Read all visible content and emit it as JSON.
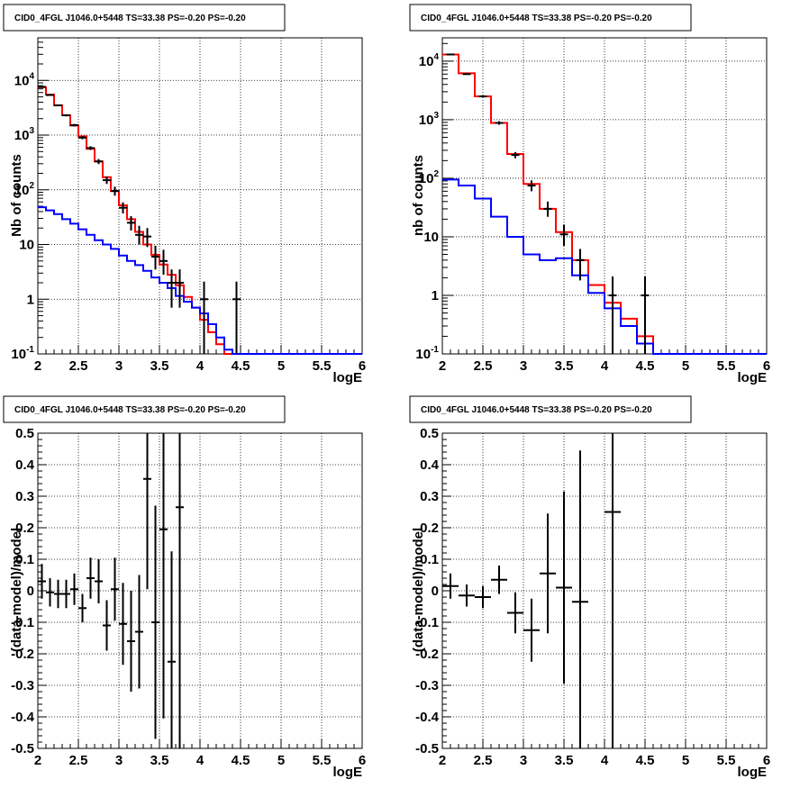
{
  "chart_data": [
    {
      "type": "histogram",
      "title": "CID0_4FGL J1046.0+5448 TS=33.38 PS=-0.20 PS=-0.20",
      "xlabel": "logE",
      "ylabel": "Nb of counts",
      "xlim": [
        2,
        6
      ],
      "ylim": [
        0.1,
        60000
      ],
      "yscale": "log",
      "x_ticks": [
        "2",
        "2.5",
        "3",
        "3.5",
        "4",
        "4.5",
        "5",
        "5.5",
        "6"
      ],
      "y_ticks": [
        {
          "base": "10",
          "exp": "-1"
        },
        {
          "base": "1",
          "exp": ""
        },
        {
          "base": "10",
          "exp": ""
        },
        {
          "base": "10",
          "exp": "2"
        },
        {
          "base": "10",
          "exp": "3"
        },
        {
          "base": "10",
          "exp": "4"
        }
      ],
      "grid": true,
      "bin_edges": [
        2.0,
        2.1,
        2.2,
        2.3,
        2.4,
        2.5,
        2.6,
        2.7,
        2.8,
        2.9,
        3.0,
        3.1,
        3.2,
        3.3,
        3.4,
        3.5,
        3.6,
        3.7,
        3.8,
        3.9,
        4.0,
        4.1,
        4.2,
        4.3,
        4.4,
        4.5,
        4.6,
        4.7,
        4.8,
        4.9,
        5.0,
        5.1,
        5.2,
        5.3,
        5.4,
        5.5,
        5.6,
        5.7,
        5.8,
        5.9,
        6.0
      ],
      "series": [
        {
          "color": "#ff0000",
          "values": [
            7500,
            5500,
            3500,
            2300,
            1500,
            950,
            560,
            330,
            170,
            95,
            52,
            29,
            17,
            10,
            6.5,
            4.3,
            2.8,
            1.8,
            1.1,
            0.7,
            0.42,
            0.25,
            0.15,
            0.1,
            0.1,
            0.1,
            0.1,
            0.1,
            0.1,
            0.1,
            0.1,
            0.1,
            0.1,
            0.1,
            0.1,
            0.1,
            0.1,
            0.1,
            0.1,
            0.1
          ]
        },
        {
          "color": "#0000ff",
          "values": [
            48,
            42,
            36,
            29,
            24,
            19,
            15,
            12,
            10,
            8.3,
            6.3,
            5,
            4.2,
            3.3,
            2.5,
            2,
            1.6,
            1.15,
            0.9,
            0.7,
            0.55,
            0.35,
            0.2,
            0.12,
            0.1,
            0.1,
            0.1,
            0.1,
            0.1,
            0.1,
            0.1,
            0.1,
            0.1,
            0.1,
            0.1,
            0.1,
            0.1,
            0.1,
            0.1,
            0.1
          ]
        }
      ],
      "points": [
        {
          "x": 2.05,
          "y": 7600,
          "lo": 7400,
          "hi": 7800
        },
        {
          "x": 2.15,
          "y": 5400,
          "lo": 5250,
          "hi": 5550
        },
        {
          "x": 2.25,
          "y": 3500,
          "lo": 3380,
          "hi": 3620
        },
        {
          "x": 2.35,
          "y": 2300,
          "lo": 2200,
          "hi": 2400
        },
        {
          "x": 2.45,
          "y": 1520,
          "lo": 1440,
          "hi": 1600
        },
        {
          "x": 2.55,
          "y": 900,
          "lo": 840,
          "hi": 960
        },
        {
          "x": 2.65,
          "y": 580,
          "lo": 535,
          "hi": 625
        },
        {
          "x": 2.75,
          "y": 330,
          "lo": 295,
          "hi": 365
        },
        {
          "x": 2.85,
          "y": 150,
          "lo": 128,
          "hi": 174
        },
        {
          "x": 2.95,
          "y": 95,
          "lo": 78,
          "hi": 114
        },
        {
          "x": 3.05,
          "y": 47,
          "lo": 37,
          "hi": 59
        },
        {
          "x": 3.15,
          "y": 25,
          "lo": 18,
          "hi": 33
        },
        {
          "x": 3.25,
          "y": 15,
          "lo": 10,
          "hi": 22
        },
        {
          "x": 3.35,
          "y": 14,
          "lo": 9,
          "hi": 20
        },
        {
          "x": 3.45,
          "y": 6,
          "lo": 3.5,
          "hi": 9.5
        },
        {
          "x": 3.55,
          "y": 5,
          "lo": 2.8,
          "hi": 8
        },
        {
          "x": 3.65,
          "y": 2,
          "lo": 0.7,
          "hi": 3.5
        },
        {
          "x": 3.75,
          "y": 2,
          "lo": 0.7,
          "hi": 3.5
        },
        {
          "x": 4.05,
          "y": 1,
          "lo": 0.1,
          "hi": 2.1
        },
        {
          "x": 4.45,
          "y": 1,
          "lo": 0.1,
          "hi": 2.1
        }
      ]
    },
    {
      "type": "histogram",
      "title": "CID0_4FGL J1046.0+5448 TS=33.38 PS=-0.20 PS=-0.20",
      "xlabel": "logE",
      "ylabel": "nb of counts",
      "xlim": [
        2,
        6
      ],
      "ylim": [
        0.1,
        25000
      ],
      "yscale": "log",
      "x_ticks": [
        "2",
        "2.5",
        "3",
        "3.5",
        "4",
        "4.5",
        "5",
        "5.5",
        "6"
      ],
      "y_ticks": [
        {
          "base": "10",
          "exp": "-1"
        },
        {
          "base": "1",
          "exp": ""
        },
        {
          "base": "10",
          "exp": ""
        },
        {
          "base": "10",
          "exp": "2"
        },
        {
          "base": "10",
          "exp": "3"
        },
        {
          "base": "10",
          "exp": "4"
        }
      ],
      "grid": true,
      "bin_edges": [
        2.0,
        2.2,
        2.4,
        2.6,
        2.8,
        3.0,
        3.2,
        3.4,
        3.6,
        3.8,
        4.0,
        4.2,
        4.4,
        4.6,
        4.8,
        5.0,
        5.2,
        5.4,
        5.6,
        5.8,
        6.0
      ],
      "series": [
        {
          "color": "#ff0000",
          "values": [
            13000,
            6200,
            2500,
            880,
            260,
            80,
            30,
            12,
            4,
            1.5,
            0.75,
            0.4,
            0.2,
            0.1,
            0.1,
            0.1,
            0.1,
            0.1,
            0.1,
            0.1
          ]
        },
        {
          "color": "#0000ff",
          "values": [
            95,
            75,
            45,
            22,
            10,
            5,
            4,
            4.3,
            2.2,
            1.1,
            0.6,
            0.3,
            0.15,
            0.1,
            0.1,
            0.1,
            0.1,
            0.1,
            0.1,
            0.1
          ]
        }
      ],
      "points": [
        {
          "x": 2.1,
          "y": 13000,
          "lo": 12800,
          "hi": 13200
        },
        {
          "x": 2.3,
          "y": 6000,
          "lo": 5850,
          "hi": 6150
        },
        {
          "x": 2.5,
          "y": 2500,
          "lo": 2400,
          "hi": 2600
        },
        {
          "x": 2.7,
          "y": 880,
          "lo": 820,
          "hi": 940
        },
        {
          "x": 2.9,
          "y": 250,
          "lo": 220,
          "hi": 280
        },
        {
          "x": 3.1,
          "y": 75,
          "lo": 60,
          "hi": 92
        },
        {
          "x": 3.3,
          "y": 30,
          "lo": 22,
          "hi": 40
        },
        {
          "x": 3.5,
          "y": 11,
          "lo": 7,
          "hi": 16
        },
        {
          "x": 3.7,
          "y": 4,
          "lo": 1.8,
          "hi": 6.2
        },
        {
          "x": 4.1,
          "y": 1,
          "lo": 0.1,
          "hi": 2.1
        },
        {
          "x": 4.5,
          "y": 1,
          "lo": 0.1,
          "hi": 2.1
        }
      ]
    },
    {
      "type": "scatter",
      "title": "CID0_4FGL J1046.0+5448 TS=33.38 PS=-0.20 PS=-0.20",
      "xlabel": "logE",
      "ylabel": "(data-model)/model",
      "xlim": [
        2,
        6
      ],
      "ylim": [
        -0.5,
        0.5
      ],
      "x_ticks": [
        "2",
        "2.5",
        "3",
        "3.5",
        "4",
        "4.5",
        "5",
        "5.5",
        "6"
      ],
      "y_ticks": [
        "-0.5",
        "-0.4",
        "-0.3",
        "-0.2",
        "-0.1",
        "0",
        "0.1",
        "0.2",
        "0.3",
        "0.4",
        "0.5"
      ],
      "grid": true,
      "points": [
        {
          "x": 2.05,
          "y": 0.03,
          "dx": 0.05,
          "dy": 0.055
        },
        {
          "x": 2.15,
          "y": -0.005,
          "dx": 0.05,
          "dy": 0.045
        },
        {
          "x": 2.25,
          "y": -0.01,
          "dx": 0.05,
          "dy": 0.045
        },
        {
          "x": 2.35,
          "y": -0.01,
          "dx": 0.05,
          "dy": 0.045
        },
        {
          "x": 2.45,
          "y": 0.005,
          "dx": 0.05,
          "dy": 0.05
        },
        {
          "x": 2.55,
          "y": -0.055,
          "dx": 0.05,
          "dy": 0.045
        },
        {
          "x": 2.65,
          "y": 0.04,
          "dx": 0.05,
          "dy": 0.065
        },
        {
          "x": 2.75,
          "y": 0.03,
          "dx": 0.05,
          "dy": 0.07
        },
        {
          "x": 2.85,
          "y": -0.11,
          "dx": 0.05,
          "dy": 0.08
        },
        {
          "x": 2.95,
          "y": 0.005,
          "dx": 0.05,
          "dy": 0.1
        },
        {
          "x": 3.05,
          "y": -0.105,
          "dx": 0.05,
          "dy": 0.13
        },
        {
          "x": 3.15,
          "y": -0.16,
          "dx": 0.05,
          "dy": 0.16
        },
        {
          "x": 3.25,
          "y": -0.13,
          "dx": 0.05,
          "dy": 0.18
        },
        {
          "x": 3.35,
          "y": 0.355,
          "dx": 0.05,
          "dy": 0.35
        },
        {
          "x": 3.45,
          "y": -0.1,
          "dx": 0.05,
          "dy": 0.37
        },
        {
          "x": 3.55,
          "y": 0.195,
          "dx": 0.05,
          "dy": 0.6
        },
        {
          "x": 3.65,
          "y": -0.225,
          "dx": 0.05,
          "dy": 0.35
        },
        {
          "x": 3.75,
          "y": 0.265,
          "dx": 0.05,
          "dy": 0.8
        }
      ]
    },
    {
      "type": "scatter",
      "title": "CID0_4FGL J1046.0+5448 TS=33.38 PS=-0.20 PS=-0.20",
      "xlabel": "logE",
      "ylabel": "(data-model)/model",
      "xlim": [
        2,
        6
      ],
      "ylim": [
        -0.5,
        0.5
      ],
      "x_ticks": [
        "2",
        "2.5",
        "3",
        "3.5",
        "4",
        "4.5",
        "5",
        "5.5",
        "6"
      ],
      "y_ticks": [
        "-0.5",
        "-0.4",
        "-0.3",
        "-0.2",
        "-0.1",
        "0",
        "0.1",
        "0.2",
        "0.3",
        "0.4",
        "0.5"
      ],
      "grid": true,
      "points": [
        {
          "x": 2.1,
          "y": 0.015,
          "dx": 0.1,
          "dy": 0.04
        },
        {
          "x": 2.3,
          "y": -0.015,
          "dx": 0.1,
          "dy": 0.035
        },
        {
          "x": 2.5,
          "y": -0.02,
          "dx": 0.1,
          "dy": 0.035
        },
        {
          "x": 2.7,
          "y": 0.035,
          "dx": 0.1,
          "dy": 0.045
        },
        {
          "x": 2.9,
          "y": -0.07,
          "dx": 0.1,
          "dy": 0.065
        },
        {
          "x": 3.1,
          "y": -0.125,
          "dx": 0.1,
          "dy": 0.1
        },
        {
          "x": 3.3,
          "y": 0.055,
          "dx": 0.1,
          "dy": 0.19
        },
        {
          "x": 3.5,
          "y": 0.01,
          "dx": 0.1,
          "dy": 0.305
        },
        {
          "x": 3.7,
          "y": -0.035,
          "dx": 0.1,
          "dy": 0.48
        },
        {
          "x": 4.1,
          "y": 0.25,
          "dx": 0.1,
          "dy": 1.0
        }
      ]
    }
  ]
}
